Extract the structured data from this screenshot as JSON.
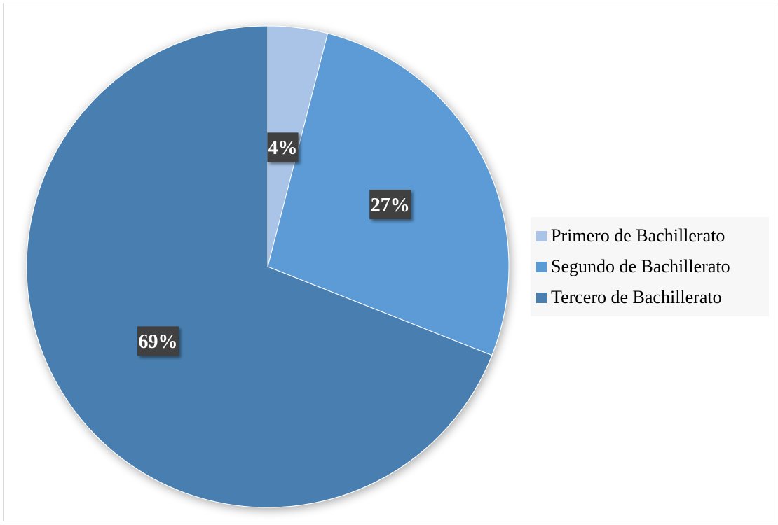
{
  "chart_data": {
    "type": "pie",
    "title": "",
    "start_angle_deg": 0,
    "direction": "clockwise",
    "legend_position": "right",
    "categories": [
      "Primero de Bachillerato",
      "Segundo de Bachillerato",
      "Tercero de Bachillerato"
    ],
    "values": [
      4,
      27,
      69
    ],
    "data_labels": [
      "4%",
      "27%",
      "69%"
    ],
    "colors": [
      "#a9c4e6",
      "#5b9bd5",
      "#4a7fb0"
    ],
    "label_box_color": "#3f3f3f",
    "label_text_color": "#ffffff"
  },
  "legend": {
    "items": [
      {
        "label": "Primero de Bachillerato",
        "color": "#a9c4e6"
      },
      {
        "label": "Segundo de Bachillerato",
        "color": "#5b9bd5"
      },
      {
        "label": "Tercero de Bachillerato",
        "color": "#4a7fb0"
      }
    ]
  }
}
